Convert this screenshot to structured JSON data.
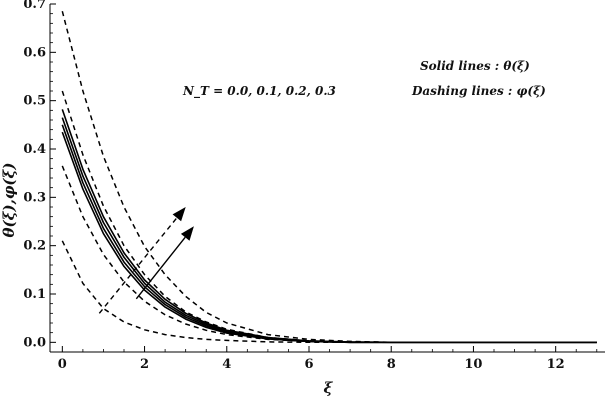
{
  "chart_data": {
    "type": "line",
    "xlabel": "ξ",
    "ylabel": "θ(ξ),φ(ξ)",
    "xlim": [
      -0.3,
      13.2
    ],
    "ylim": [
      -0.02,
      0.7
    ],
    "xticks": [
      0,
      2,
      4,
      6,
      8,
      10,
      12
    ],
    "xtick_labels": [
      "0",
      "2",
      "4",
      "6",
      "8",
      "10",
      "12"
    ],
    "yticks": [
      0.0,
      0.1,
      0.2,
      0.3,
      0.4,
      0.5,
      0.6,
      0.7
    ],
    "ytick_labels": [
      "0.0",
      "0.1",
      "0.2",
      "0.3",
      "0.4",
      "0.5",
      "0.6",
      "0.7"
    ],
    "grid": false,
    "annotations": {
      "parameter": "N_T = 0.0, 0.1, 0.2, 0.3",
      "legend_solid": "Solid lines : θ(ξ)",
      "legend_dashed": "Dashing lines : φ(ξ)"
    },
    "x": [
      0,
      0.5,
      1,
      1.5,
      2,
      2.5,
      3,
      3.5,
      4,
      5,
      6,
      7,
      8,
      9,
      10,
      11,
      12,
      13
    ],
    "series": [
      {
        "style": "solid",
        "values": [
          0.435,
          0.317,
          0.225,
          0.157,
          0.108,
          0.073,
          0.048,
          0.031,
          0.019,
          0.007,
          0.002,
          0.0,
          0.0,
          0.0,
          0.0,
          0.0,
          0.0,
          0.0
        ]
      },
      {
        "style": "solid",
        "values": [
          0.45,
          0.33,
          0.236,
          0.166,
          0.115,
          0.078,
          0.052,
          0.034,
          0.021,
          0.008,
          0.002,
          0.0,
          0.0,
          0.0,
          0.0,
          0.0,
          0.0,
          0.0
        ]
      },
      {
        "style": "solid",
        "values": [
          0.465,
          0.344,
          0.248,
          0.176,
          0.122,
          0.083,
          0.056,
          0.037,
          0.023,
          0.009,
          0.003,
          0.0,
          0.0,
          0.0,
          0.0,
          0.0,
          0.0,
          0.0
        ]
      },
      {
        "style": "solid",
        "values": [
          0.482,
          0.358,
          0.26,
          0.185,
          0.129,
          0.089,
          0.06,
          0.04,
          0.025,
          0.01,
          0.003,
          0.001,
          0.0,
          0.0,
          0.0,
          0.0,
          0.0,
          0.0
        ]
      },
      {
        "style": "dashed",
        "values": [
          0.685,
          0.52,
          0.385,
          0.28,
          0.198,
          0.14,
          0.095,
          0.062,
          0.04,
          0.016,
          0.006,
          0.002,
          0.0,
          0.0,
          0.0,
          0.0,
          0.0,
          0.0
        ]
      },
      {
        "style": "dashed",
        "values": [
          0.52,
          0.388,
          0.282,
          0.2,
          0.14,
          0.095,
          0.063,
          0.042,
          0.027,
          0.01,
          0.003,
          0.001,
          0.0,
          0.0,
          0.0,
          0.0,
          0.0,
          0.0
        ]
      },
      {
        "style": "dashed",
        "values": [
          0.365,
          0.26,
          0.182,
          0.125,
          0.085,
          0.057,
          0.038,
          0.025,
          0.016,
          0.006,
          0.002,
          0.0,
          0.0,
          0.0,
          0.0,
          0.0,
          0.0,
          0.0
        ]
      },
      {
        "style": "dashed",
        "values": [
          0.21,
          0.122,
          0.07,
          0.042,
          0.026,
          0.016,
          0.01,
          0.006,
          0.004,
          0.001,
          0.0,
          0.0,
          0.0,
          0.0,
          0.0,
          0.0,
          0.0,
          0.0
        ]
      }
    ],
    "arrows": [
      {
        "style": "dashed",
        "from": [
          0.9,
          0.06
        ],
        "to": [
          3.0,
          0.28
        ]
      },
      {
        "style": "solid",
        "from": [
          1.8,
          0.09
        ],
        "to": [
          3.2,
          0.24
        ]
      }
    ]
  }
}
